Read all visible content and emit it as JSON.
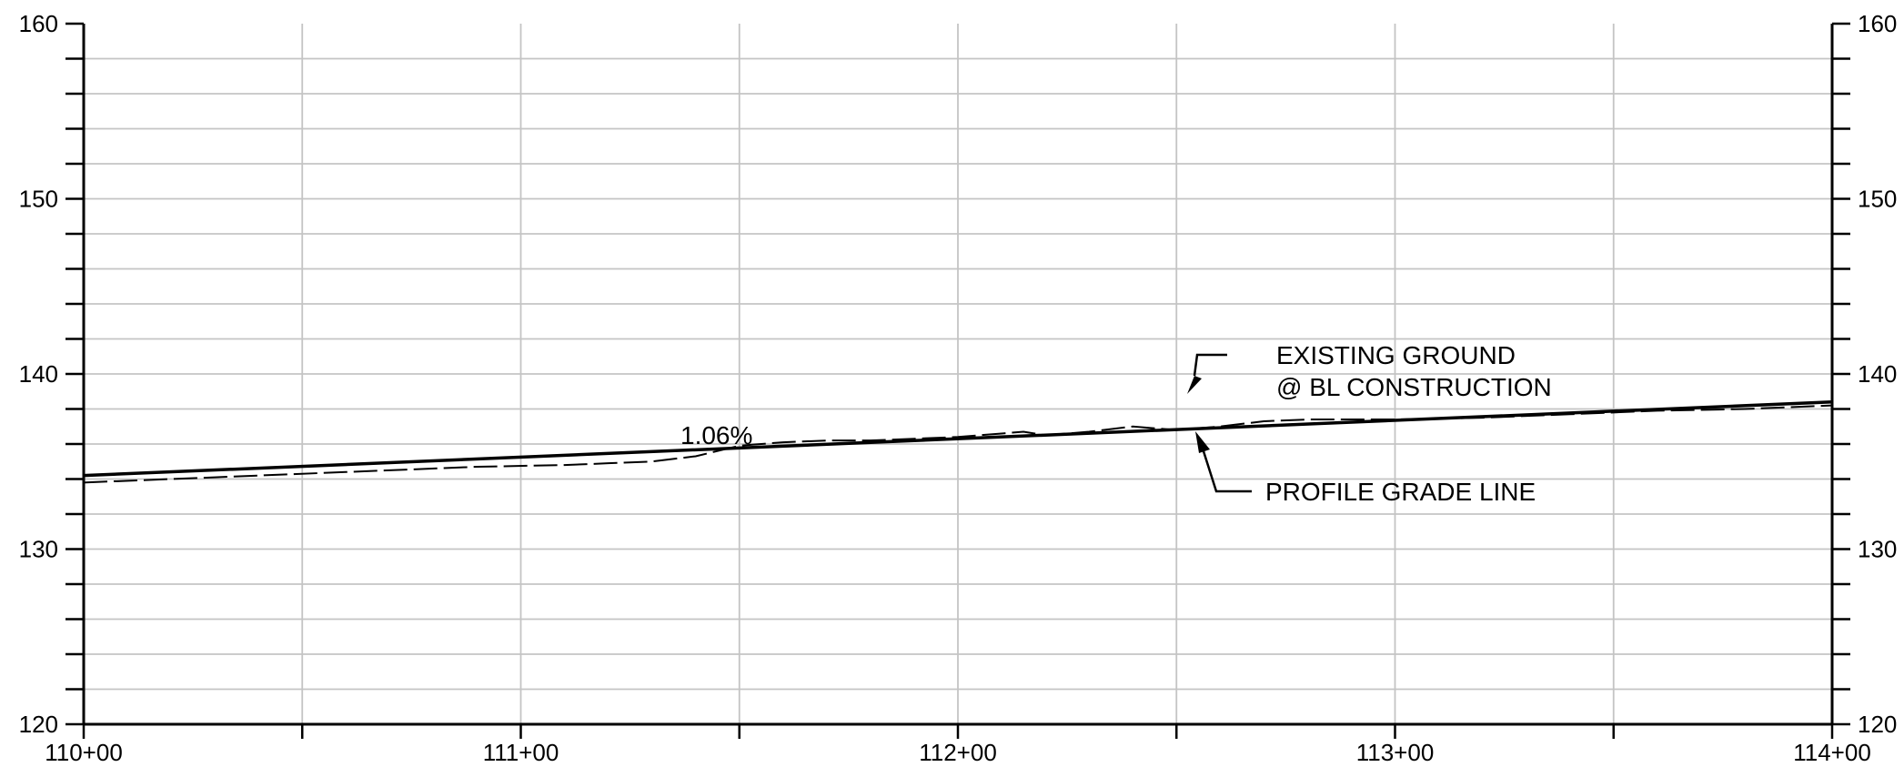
{
  "chart_data": {
    "type": "line",
    "title": "",
    "xlabel": "",
    "ylabel": "",
    "x_ticks": [
      {
        "value": 0,
        "label": "110+00"
      },
      {
        "value": 100,
        "label": "111+00"
      },
      {
        "value": 200,
        "label": "112+00"
      },
      {
        "value": 300,
        "label": "113+00"
      },
      {
        "value": 400,
        "label": "114+00"
      }
    ],
    "y_ticks": [
      {
        "value": 120,
        "label": "120"
      },
      {
        "value": 130,
        "label": "130"
      },
      {
        "value": 140,
        "label": "140"
      },
      {
        "value": 150,
        "label": "150"
      },
      {
        "value": 160,
        "label": "160"
      }
    ],
    "xlim": [
      0,
      400
    ],
    "ylim": [
      120,
      160
    ],
    "grid": true,
    "y_axis_both_sides": true,
    "series": [
      {
        "key": "profile-grade-line",
        "style": "solid",
        "color": "#000000",
        "x": [
          0,
          400
        ],
        "y": [
          134.2,
          138.4
        ]
      },
      {
        "key": "existing-ground",
        "style": "dashed",
        "color": "#000000",
        "x": [
          0,
          30,
          60,
          90,
          110,
          120,
          130,
          140,
          150,
          160,
          170,
          180,
          190,
          200,
          210,
          215,
          220,
          230,
          240,
          250,
          255,
          260,
          270,
          280,
          290,
          300,
          320,
          340,
          360,
          380,
          400
        ],
        "y": [
          133.8,
          134.1,
          134.4,
          134.7,
          134.8,
          134.9,
          135.0,
          135.3,
          135.9,
          136.1,
          136.2,
          136.2,
          136.3,
          136.4,
          136.6,
          136.7,
          136.5,
          136.7,
          137.0,
          136.8,
          136.9,
          137.0,
          137.3,
          137.4,
          137.4,
          137.4,
          137.5,
          137.7,
          137.9,
          138.0,
          138.2
        ]
      }
    ],
    "annotations": [
      {
        "key": "slope",
        "text": "1.06%"
      },
      {
        "key": "existing-ground",
        "lines": [
          "EXISTING GROUND",
          "@ BL CONSTRUCTION"
        ]
      },
      {
        "key": "profile-grade-line",
        "lines": [
          "PROFILE GRADE LINE"
        ]
      }
    ]
  }
}
